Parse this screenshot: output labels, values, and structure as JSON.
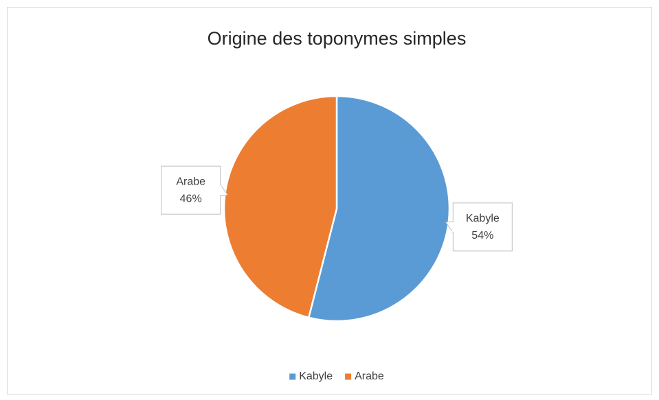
{
  "chart_data": {
    "type": "pie",
    "title": "Origine des toponymes simples",
    "categories": [
      "Kabyle",
      "Arabe"
    ],
    "values": [
      54,
      46
    ],
    "value_labels": [
      "54%",
      "46%"
    ],
    "colors": [
      "#5b9bd5",
      "#ed7d31"
    ],
    "legend": "bottom"
  }
}
